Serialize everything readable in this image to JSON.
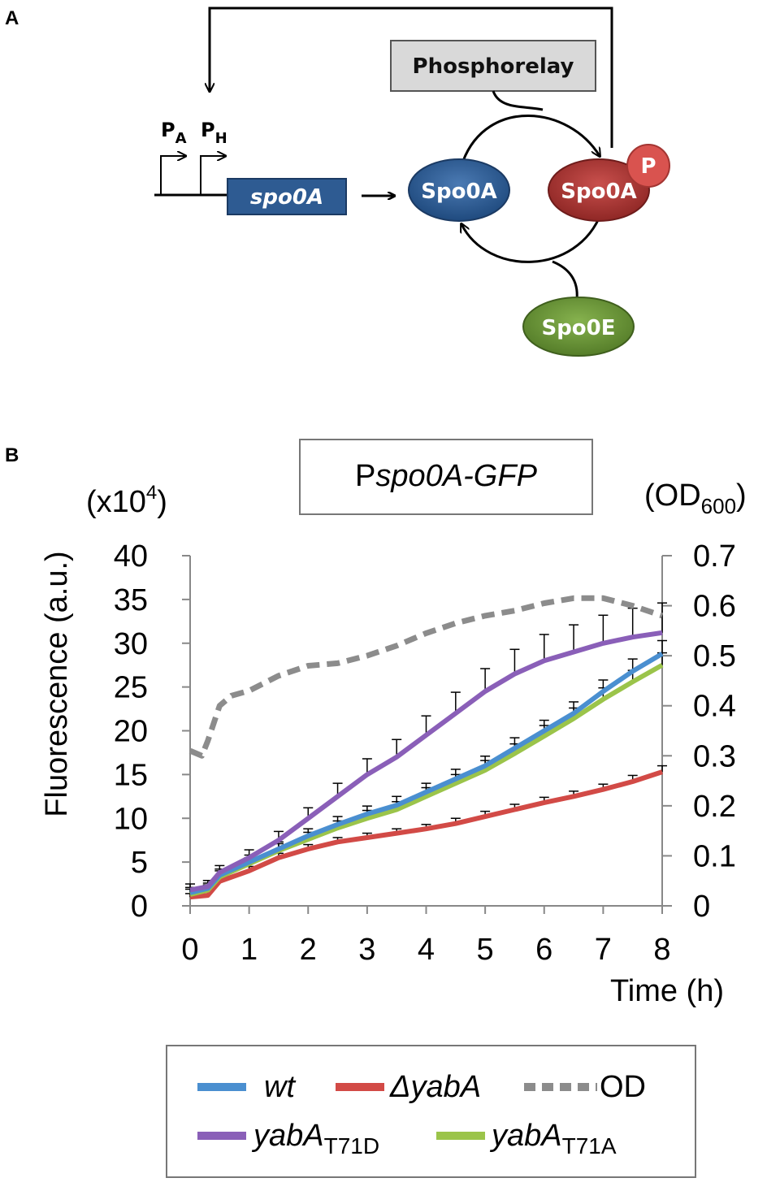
{
  "panel_a": {
    "label": "A",
    "promoter_a": {
      "main": "P",
      "sub": "A"
    },
    "promoter_h": {
      "main": "P",
      "sub": "H"
    },
    "gene_label": "spo0A",
    "phosphorelay_label": "Phosphorelay",
    "spo0a_label": "Spo0A",
    "spo0a_p_label": "Spo0A",
    "phosphate_label": "P",
    "spo0e_label": "Spo0E",
    "colors": {
      "spo0a": "#2e5b92",
      "spo0a_p": "#b03634",
      "phosphate": "#d9534f",
      "spo0e": "#6f9a3a",
      "gene_box": "#2e5b92",
      "phosphorelay_box": "#d9d9d9"
    }
  },
  "panel_b": {
    "label": "B",
    "chart_title": {
      "plain": "P",
      "italic": "spo0A-GFP"
    },
    "left_unit": {
      "prefix": "(x10",
      "exp": "4",
      "suffix": ")"
    },
    "right_unit": {
      "prefix": "(OD",
      "sub": "600",
      "suffix": ")"
    }
  },
  "chart_data": {
    "type": "line",
    "title": "Pspo0A-GFP",
    "xlabel": "Time (h)",
    "ylabel": "Fluorescence (a.u.)",
    "y2label": "(OD600)",
    "xlim": [
      0,
      8
    ],
    "ylim": [
      0,
      40
    ],
    "y2lim": [
      0,
      0.7
    ],
    "x_ticks": [
      "0",
      "1",
      "2",
      "3",
      "4",
      "5",
      "6",
      "7",
      "8"
    ],
    "y_ticks": [
      "0",
      "5",
      "10",
      "15",
      "20",
      "25",
      "30",
      "35",
      "40"
    ],
    "y2_ticks": [
      "0",
      "0.1",
      "0.2",
      "0.3",
      "0.4",
      "0.5",
      "0.6",
      "0.7"
    ],
    "legend": [
      {
        "key": "wt",
        "text": "wt",
        "sub": ""
      },
      {
        "key": "dyabA",
        "text": "ΔyabA",
        "sub": ""
      },
      {
        "key": "od",
        "text": "OD",
        "sub": ""
      },
      {
        "key": "t71d",
        "text": "yabA",
        "sub": "T71D"
      },
      {
        "key": "t71a",
        "text": "yabA",
        "sub": "T71A"
      }
    ],
    "series": [
      {
        "name": "wt",
        "axis": "left",
        "color": "#4a8fd0",
        "x": [
          0,
          0.3,
          0.5,
          1,
          1.5,
          2,
          2.5,
          3,
          3.5,
          4,
          4.5,
          5,
          5.5,
          6,
          6.5,
          7,
          7.5,
          8
        ],
        "y": [
          1.5,
          2,
          3.5,
          5,
          6.5,
          8,
          9.3,
          10.5,
          11.5,
          13,
          14.5,
          16,
          18,
          20,
          22,
          24.5,
          26.8,
          28.8
        ],
        "err": [
          0.6,
          0.6,
          0.7,
          0.8,
          0.8,
          0.8,
          0.9,
          0.9,
          1.0,
          1.0,
          1.1,
          1.1,
          1.2,
          1.2,
          1.3,
          1.3,
          1.4,
          1.5
        ]
      },
      {
        "name": "ΔyabA",
        "axis": "left",
        "color": "#d24a46",
        "x": [
          0,
          0.3,
          0.5,
          1,
          1.5,
          2,
          2.5,
          3,
          3.5,
          4,
          4.5,
          5,
          5.5,
          6,
          6.5,
          7,
          7.5,
          8
        ],
        "y": [
          1,
          1.2,
          2.8,
          4,
          5.5,
          6.5,
          7.3,
          7.8,
          8.3,
          8.8,
          9.4,
          10.2,
          11,
          11.8,
          12.5,
          13.3,
          14.2,
          15.3
        ],
        "err": [
          0.4,
          0.4,
          0.5,
          0.5,
          0.5,
          0.5,
          0.5,
          0.5,
          0.5,
          0.5,
          0.6,
          0.6,
          0.6,
          0.6,
          0.6,
          0.6,
          0.7,
          0.7
        ]
      },
      {
        "name": "yabA T71D",
        "axis": "left",
        "color": "#8a5fb8",
        "x": [
          0,
          0.3,
          0.5,
          1,
          1.5,
          2,
          2.5,
          3,
          3.5,
          4,
          4.5,
          5,
          5.5,
          6,
          6.5,
          7,
          7.5,
          8
        ],
        "y": [
          1.8,
          2.2,
          3.8,
          5.5,
          7.5,
          10,
          12.5,
          15,
          17,
          19.5,
          22,
          24.5,
          26.5,
          28,
          29,
          30,
          30.7,
          31.2
        ],
        "err": [
          0.7,
          0.7,
          0.8,
          0.9,
          1.0,
          1.2,
          1.5,
          1.8,
          2.0,
          2.2,
          2.4,
          2.6,
          2.8,
          3.0,
          3.1,
          3.2,
          3.3,
          3.4
        ]
      },
      {
        "name": "yabA T71A",
        "axis": "left",
        "color": "#9bc44a",
        "x": [
          0,
          0.3,
          0.5,
          1,
          1.5,
          2,
          2.5,
          3,
          3.5,
          4,
          4.5,
          5,
          5.5,
          6,
          6.5,
          7,
          7.5,
          8
        ],
        "y": [
          1.3,
          1.8,
          3.3,
          4.8,
          6.3,
          7.6,
          8.9,
          10,
          11,
          12.5,
          14,
          15.5,
          17.4,
          19.4,
          21.4,
          23.6,
          25.6,
          27.5
        ],
        "err": [
          0.6,
          0.6,
          0.7,
          0.7,
          0.8,
          0.8,
          0.8,
          0.9,
          0.9,
          1.0,
          1.0,
          1.1,
          1.1,
          1.2,
          1.2,
          1.3,
          1.3,
          1.4
        ]
      },
      {
        "name": "OD",
        "axis": "right",
        "color": "#8c8c8c",
        "dashed": true,
        "x": [
          0,
          0.2,
          0.3,
          0.5,
          0.7,
          1,
          1.5,
          2,
          2.5,
          3,
          3.5,
          4,
          4.5,
          5,
          5.5,
          6,
          6.5,
          7,
          7.5,
          8
        ],
        "y": [
          0.31,
          0.3,
          0.33,
          0.4,
          0.42,
          0.43,
          0.46,
          0.48,
          0.485,
          0.5,
          0.52,
          0.545,
          0.565,
          0.58,
          0.59,
          0.605,
          0.615,
          0.615,
          0.6,
          0.58
        ]
      }
    ]
  }
}
